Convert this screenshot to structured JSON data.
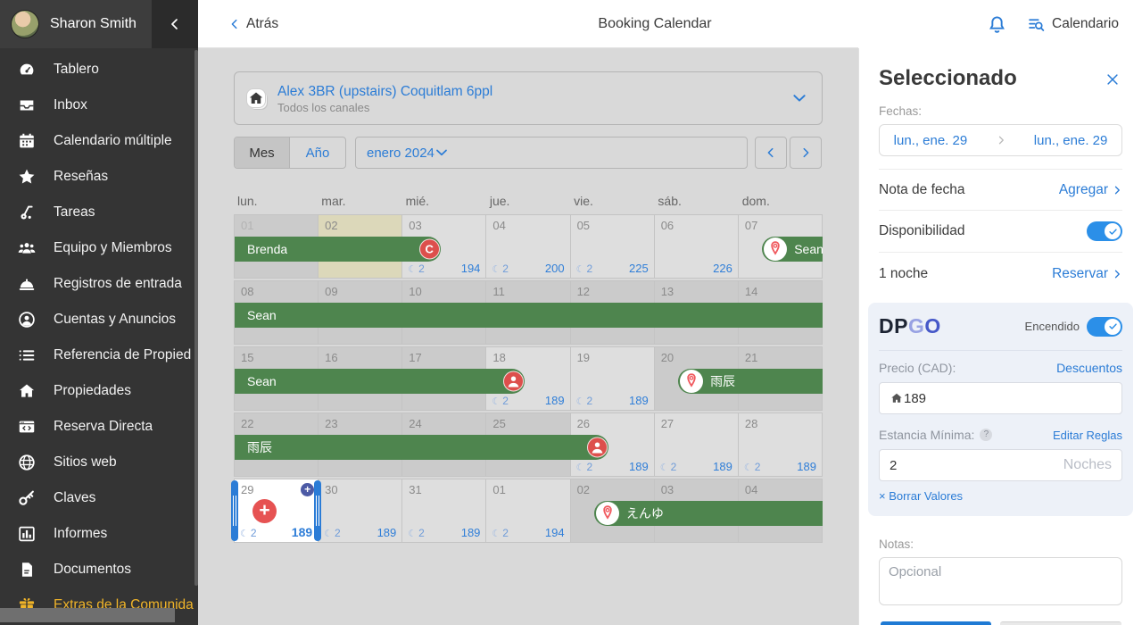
{
  "sidebar": {
    "user": "Sharon Smith",
    "items": [
      {
        "icon": "dashboard",
        "label": "Tablero"
      },
      {
        "icon": "inbox",
        "label": "Inbox"
      },
      {
        "icon": "calendar",
        "label": "Calendario múltiple"
      },
      {
        "icon": "star",
        "label": "Reseñas"
      },
      {
        "icon": "vacuum",
        "label": "Tareas"
      },
      {
        "icon": "people",
        "label": "Equipo y Miembros"
      },
      {
        "icon": "service-bell",
        "label": "Registros de entrada"
      },
      {
        "icon": "person-circle",
        "label": "Cuentas y Anuncios"
      },
      {
        "icon": "list",
        "label": "Referencia de Propied"
      },
      {
        "icon": "home",
        "label": "Propiedades"
      },
      {
        "icon": "browser-code",
        "label": "Reserva Directa"
      },
      {
        "icon": "globe",
        "label": "Sitios web"
      },
      {
        "icon": "key",
        "label": "Claves"
      },
      {
        "icon": "bar-chart",
        "label": "Informes"
      },
      {
        "icon": "document",
        "label": "Documentos"
      },
      {
        "icon": "gift",
        "label": "Extras de la Comunida",
        "highlight": true
      }
    ]
  },
  "header": {
    "back": "Atrás",
    "title": "Booking Calendar",
    "calendar_label": "Calendario"
  },
  "toolbar": {
    "property_name": "Alex 3BR (upstairs) Coquitlam 6ppl",
    "property_channels": "Todos los canales",
    "view_month": "Mes",
    "view_year": "Año",
    "period": "enero 2024"
  },
  "calendar": {
    "weekdays": [
      "lun.",
      "mar.",
      "mié.",
      "jue.",
      "vie.",
      "sáb.",
      "dom."
    ],
    "weeks": [
      {
        "cells": [
          {
            "day": "01",
            "state": "booked",
            "dim": true
          },
          {
            "day": "02",
            "state": "note"
          },
          {
            "day": "03",
            "state": "open",
            "moon": "2",
            "price": "194"
          },
          {
            "day": "04",
            "state": "open",
            "moon": "2",
            "price": "200"
          },
          {
            "day": "05",
            "state": "open",
            "moon": "2",
            "price": "225"
          },
          {
            "day": "06",
            "state": "open",
            "price": "226"
          },
          {
            "day": "07",
            "state": "open"
          }
        ],
        "bars": [
          {
            "label": "Brenda",
            "start": 0,
            "end": 2.45,
            "round_end": true,
            "badge": "cancel"
          },
          {
            "label": "Sean",
            "start": 6.28,
            "end": 7,
            "round_start": true,
            "channel": "airbnb"
          }
        ]
      },
      {
        "cells": [
          {
            "day": "08",
            "state": "booked"
          },
          {
            "day": "09",
            "state": "booked"
          },
          {
            "day": "10",
            "state": "booked"
          },
          {
            "day": "11",
            "state": "booked"
          },
          {
            "day": "12",
            "state": "booked"
          },
          {
            "day": "13",
            "state": "booked"
          },
          {
            "day": "14",
            "state": "booked"
          }
        ],
        "bars": [
          {
            "label": "Sean",
            "start": 0,
            "end": 7
          }
        ]
      },
      {
        "cells": [
          {
            "day": "15",
            "state": "booked"
          },
          {
            "day": "16",
            "state": "booked"
          },
          {
            "day": "17",
            "state": "booked"
          },
          {
            "day": "18",
            "state": "open",
            "moon": "2",
            "price": "189"
          },
          {
            "day": "19",
            "state": "open",
            "moon": "2",
            "price": "189"
          },
          {
            "day": "20",
            "state": "booked"
          },
          {
            "day": "21",
            "state": "booked"
          }
        ],
        "bars": [
          {
            "label": "Sean",
            "start": 0,
            "end": 3.45,
            "round_end": true,
            "badge": "person"
          },
          {
            "label": "雨辰",
            "start": 5.28,
            "end": 7,
            "round_start": true,
            "channel": "airbnb"
          }
        ]
      },
      {
        "cells": [
          {
            "day": "22",
            "state": "booked"
          },
          {
            "day": "23",
            "state": "booked"
          },
          {
            "day": "24",
            "state": "booked"
          },
          {
            "day": "25",
            "state": "booked"
          },
          {
            "day": "26",
            "state": "open",
            "moon": "2",
            "price": "189"
          },
          {
            "day": "27",
            "state": "open",
            "moon": "2",
            "price": "189"
          },
          {
            "day": "28",
            "state": "open",
            "moon": "2",
            "price": "189"
          }
        ],
        "bars": [
          {
            "label": "雨辰",
            "start": 0,
            "end": 4.45,
            "round_end": true,
            "badge": "person"
          }
        ]
      },
      {
        "cells": [
          {
            "day": "29",
            "state": "selected",
            "moon": "2",
            "price": "189"
          },
          {
            "day": "30",
            "state": "open",
            "moon": "2",
            "price": "189"
          },
          {
            "day": "31",
            "state": "open",
            "moon": "2",
            "price": "189"
          },
          {
            "day": "01",
            "state": "open",
            "moon": "2",
            "price": "194"
          },
          {
            "day": "02",
            "state": "booked"
          },
          {
            "day": "03",
            "state": "booked"
          },
          {
            "day": "04",
            "state": "booked"
          }
        ],
        "bars": [
          {
            "label": "えんゆ",
            "start": 4.28,
            "end": 7,
            "round_start": true,
            "channel": "airbnb"
          }
        ]
      }
    ]
  },
  "panel": {
    "title": "Seleccionado",
    "dates_label": "Fechas:",
    "date_from": "lun., ene. 29",
    "date_to": "lun., ene. 29",
    "note_label": "Nota de fecha",
    "note_action": "Agregar",
    "availability_label": "Disponibilidad",
    "nights_label": "1 noche",
    "nights_action": "Reservar",
    "dpgo": {
      "brand": "DPGO",
      "status": "Encendido",
      "price_label": "Precio (CAD):",
      "discounts": "Descuentos",
      "price": "189",
      "min_stay_label": "Estancia Mínima:",
      "edit_rules": "Editar Reglas",
      "min_stay": "2",
      "min_stay_placeholder": "Noches",
      "clear": "× Borrar Valores"
    },
    "notes_label": "Notas:",
    "notes_placeholder": "Opcional"
  },
  "colors": {
    "accent_blue": "#2b7cd6",
    "booking_green": "#4e854e",
    "badge_red": "#dd4f4c",
    "toggle_blue": "#2b8fe8",
    "highlight_gold": "#f0b429",
    "price_blue": "#2f7ed8",
    "note_khaki": "#dcd8ba"
  }
}
